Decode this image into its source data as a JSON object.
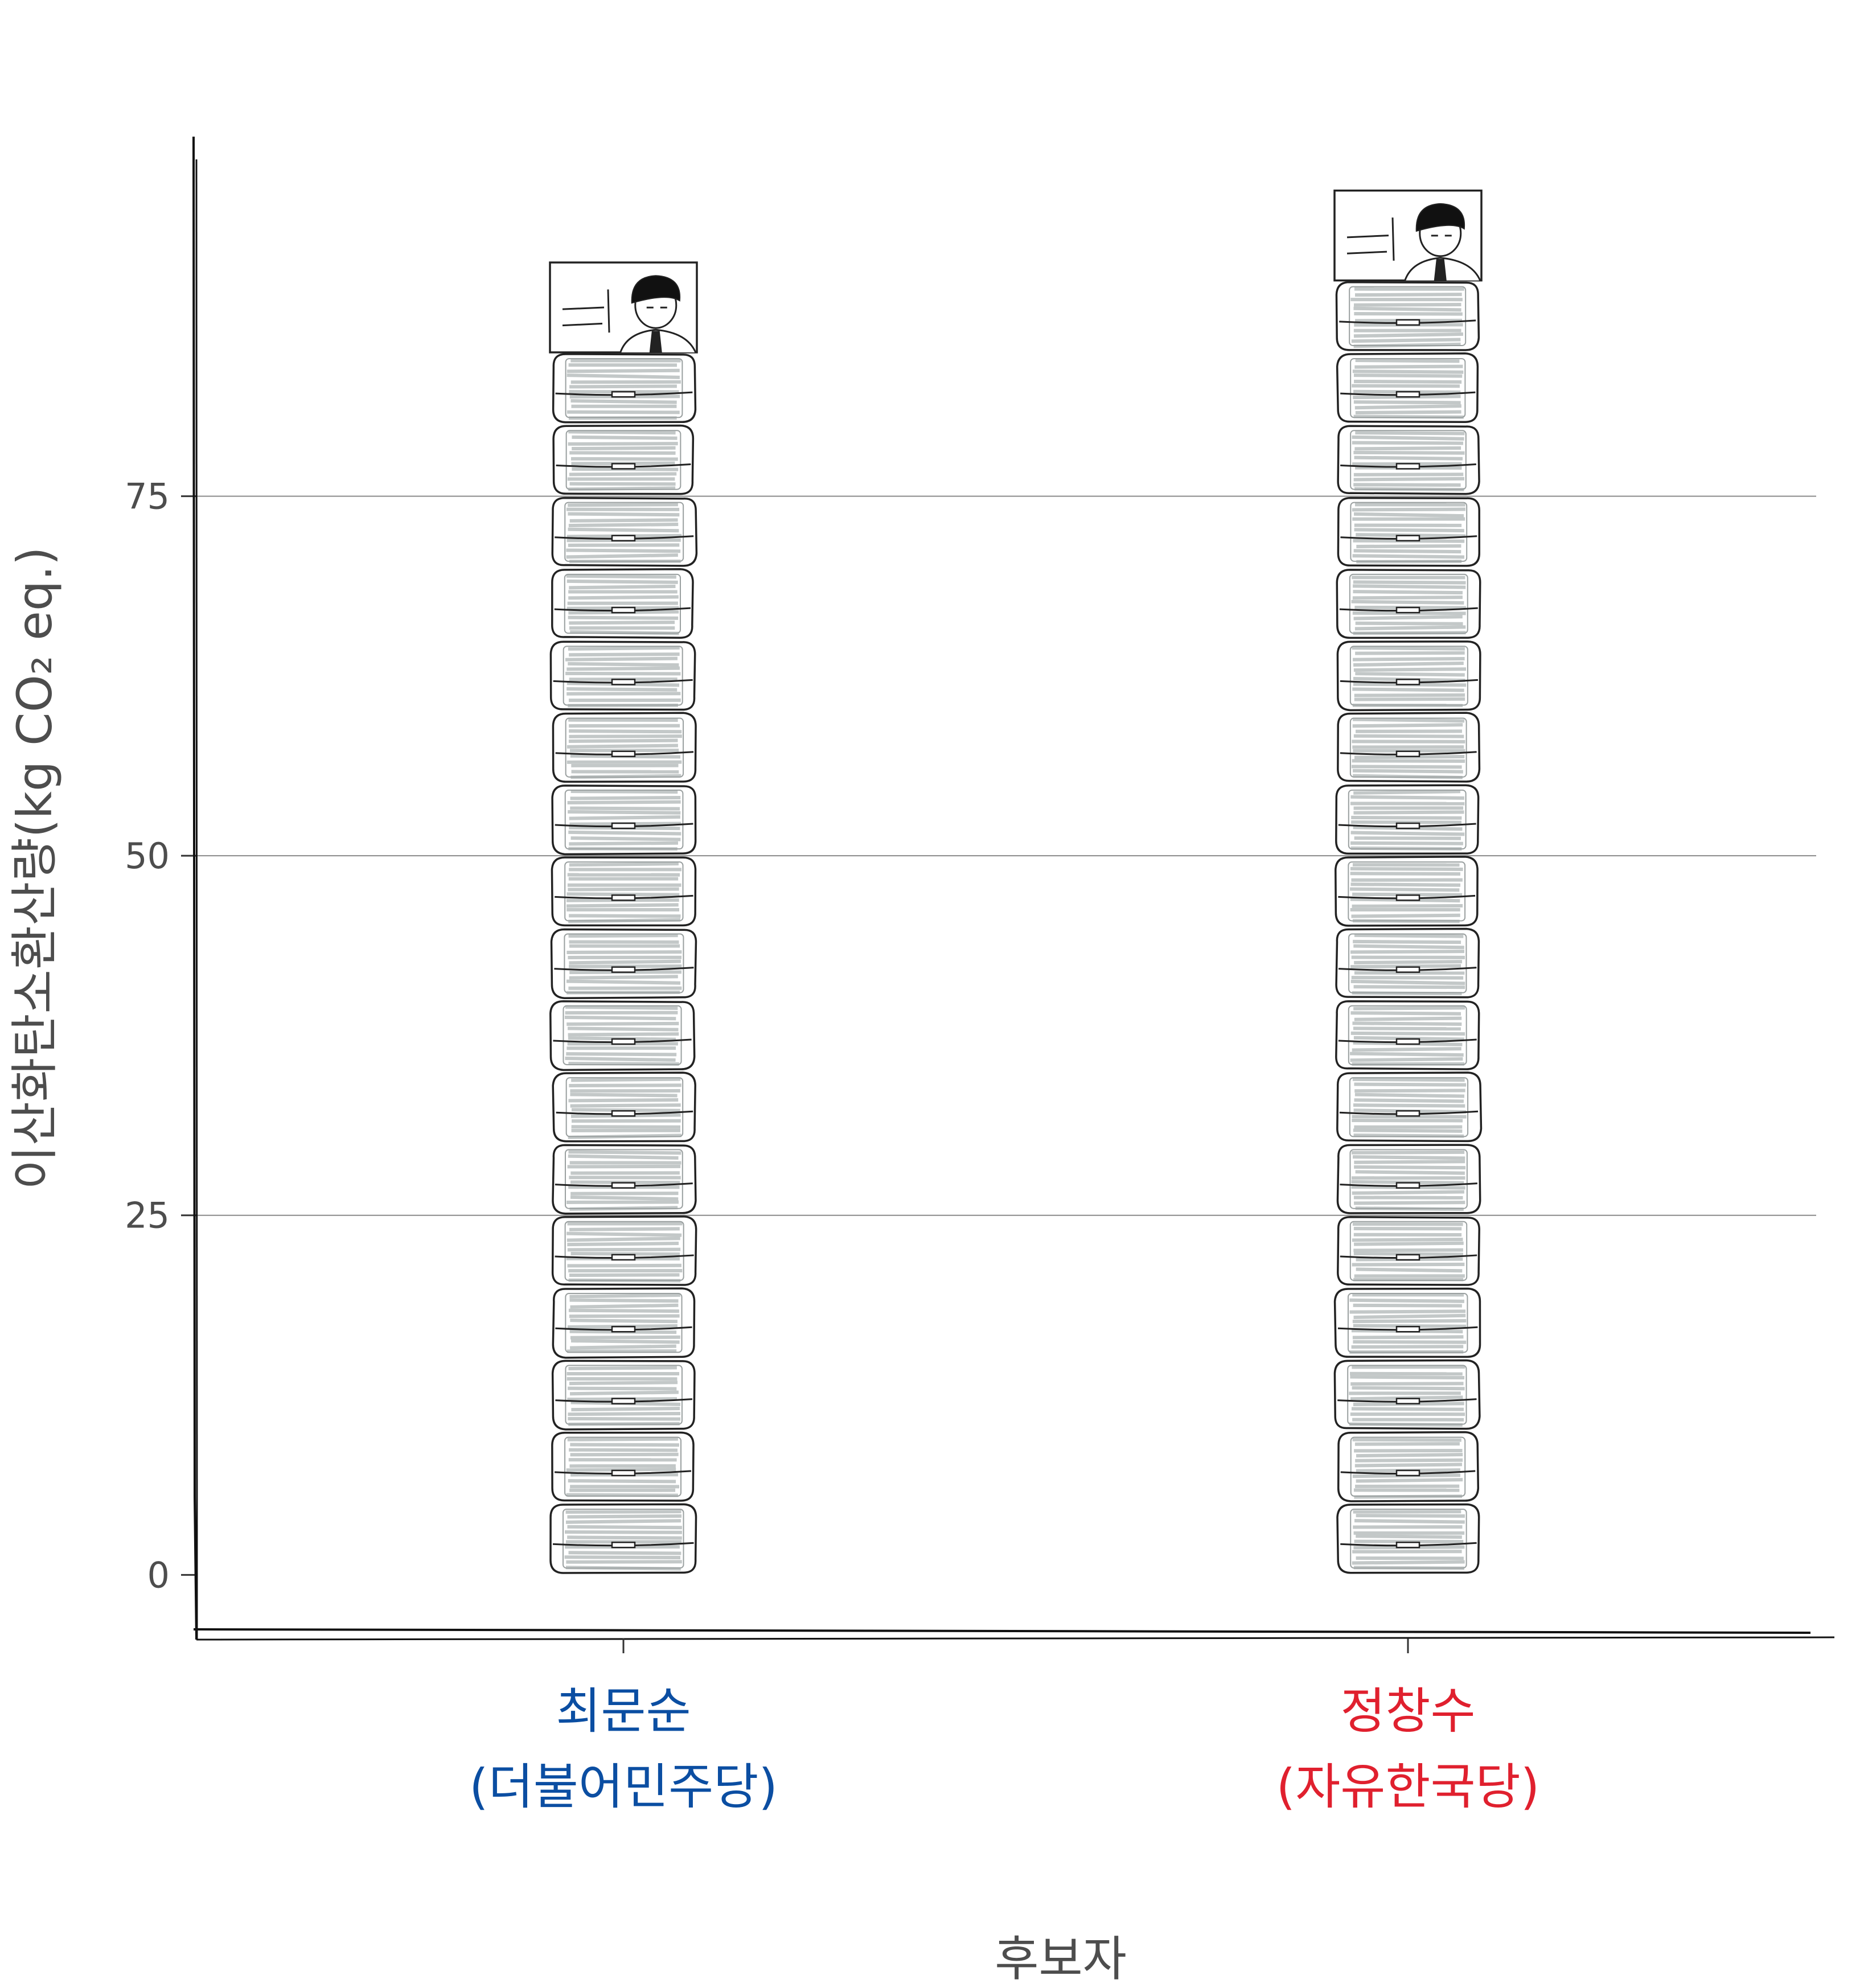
{
  "chart_data": {
    "type": "bar",
    "xlabel": "후보자",
    "ylabel": "이산화탄소환산량(kg CO₂ eq.)",
    "categories": [
      {
        "name": "최문순",
        "party": "(더불어민주당)",
        "color": "#0b4ea2"
      },
      {
        "name": "정창수",
        "party": "(자유한국당)",
        "color": "#e0202e"
      }
    ],
    "values": [
      90,
      94
    ],
    "unit_value": 5,
    "ylim": [
      -4.5,
      100
    ],
    "yticks": [
      0,
      25,
      50,
      75
    ],
    "grid": "horizontal major",
    "pictogram": {
      "unit_icon": "air-conditioner-icon",
      "top_icon": "candidate-portrait-icon",
      "fill_color": "#c3c8c8",
      "outline_color": "#222222"
    }
  }
}
